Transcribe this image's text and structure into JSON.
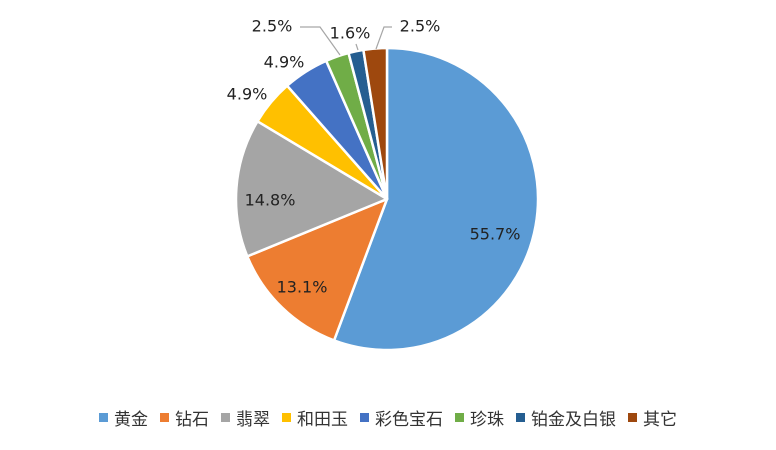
{
  "chart_data": {
    "type": "pie",
    "title": "",
    "categories": [
      "黄金",
      "钻石",
      "翡翠",
      "和田玉",
      "彩色宝石",
      "珍珠",
      "铂金及白银",
      "其它"
    ],
    "values": [
      55.7,
      13.1,
      14.8,
      4.9,
      4.9,
      2.5,
      1.6,
      2.5
    ],
    "labels": [
      "55.7%",
      "13.1%",
      "14.8%",
      "4.9%",
      "4.9%",
      "2.5%",
      "1.6%",
      "2.5%"
    ],
    "colors": [
      "#5b9bd5",
      "#ed7d31",
      "#a5a5a5",
      "#ffc000",
      "#4472c4",
      "#70ad47",
      "#255e91",
      "#9e480e"
    ],
    "start_angle_degrees": 0,
    "direction": "clockwise",
    "legend_position": "bottom"
  },
  "legend": {
    "items": [
      {
        "label": "黄金",
        "color": "#5b9bd5"
      },
      {
        "label": "钻石",
        "color": "#ed7d31"
      },
      {
        "label": "翡翠",
        "color": "#a5a5a5"
      },
      {
        "label": "和田玉",
        "color": "#ffc000"
      },
      {
        "label": "彩色宝石",
        "color": "#4472c4"
      },
      {
        "label": "珍珠",
        "color": "#70ad47"
      },
      {
        "label": "铂金及白银",
        "color": "#255e91"
      },
      {
        "label": "其它",
        "color": "#9e480e"
      }
    ]
  }
}
